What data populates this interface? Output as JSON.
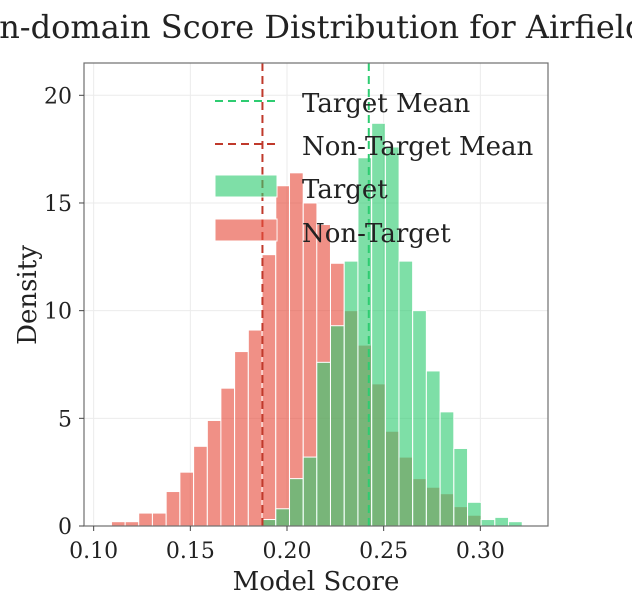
{
  "chart_data": {
    "type": "histogram",
    "title": "In-domain Score Distribution for Airfield",
    "xlabel": "Model Score",
    "ylabel": "Density",
    "xlim": [
      0.095,
      0.335
    ],
    "ylim": [
      0,
      21.5
    ],
    "xticks": [
      0.1,
      0.15,
      0.2,
      0.25,
      0.3
    ],
    "xtick_labels": [
      "0.10",
      "0.15",
      "0.20",
      "0.25",
      "0.30"
    ],
    "yticks": [
      0,
      5,
      10,
      15,
      20
    ],
    "ytick_labels": [
      "0",
      "5",
      "10",
      "15",
      "20"
    ],
    "grid": true,
    "legend_position": "top-right",
    "legend": [
      {
        "label": "Target Mean",
        "kind": "dashed-line",
        "color": "#2ecc71"
      },
      {
        "label": "Non-Target Mean",
        "kind": "dashed-line",
        "color": "#c0392b"
      },
      {
        "label": "Target",
        "kind": "patch",
        "color": "#2ecc71"
      },
      {
        "label": "Non-Target",
        "kind": "patch",
        "color": "#e74c3c"
      }
    ],
    "bin_width": 0.00708,
    "series": [
      {
        "name": "Target",
        "color": "#2ecc71",
        "bin_starts": [
          0.1871,
          0.1942,
          0.2013,
          0.2084,
          0.2154,
          0.2225,
          0.2296,
          0.2367,
          0.2438,
          0.2509,
          0.2579,
          0.265,
          0.2721,
          0.2792,
          0.2863,
          0.2934,
          0.3004,
          0.3075,
          0.3146
        ],
        "values": [
          0.3,
          0.8,
          2.2,
          3.2,
          7.6,
          9.3,
          12.3,
          17.1,
          18.7,
          17.6,
          12.3,
          10.0,
          7.2,
          5.3,
          3.6,
          1.1,
          0.3,
          0.4,
          0.2
        ]
      },
      {
        "name": "Non-Target",
        "color": "#e74c3c",
        "bin_starts": [
          0.1092,
          0.1163,
          0.1233,
          0.1304,
          0.1375,
          0.1446,
          0.1517,
          0.1588,
          0.1658,
          0.1729,
          0.18,
          0.1871,
          0.1942,
          0.2013,
          0.2084,
          0.2154,
          0.2225,
          0.2296,
          0.2367,
          0.2438,
          0.2509,
          0.2579,
          0.265,
          0.2721,
          0.2792,
          0.2863,
          0.2934
        ],
        "values": [
          0.2,
          0.2,
          0.6,
          0.6,
          1.6,
          2.5,
          3.7,
          4.9,
          6.4,
          8.1,
          9.1,
          12.6,
          15.8,
          16.4,
          15.0,
          14.0,
          12.2,
          10.0,
          8.4,
          6.6,
          4.4,
          3.2,
          2.2,
          1.8,
          1.5,
          0.9,
          0.5
        ]
      }
    ],
    "mean_lines": [
      {
        "name": "Target Mean",
        "x": 0.2423,
        "color": "#2ecc71"
      },
      {
        "name": "Non-Target Mean",
        "x": 0.1873,
        "color": "#c0392b"
      }
    ]
  }
}
